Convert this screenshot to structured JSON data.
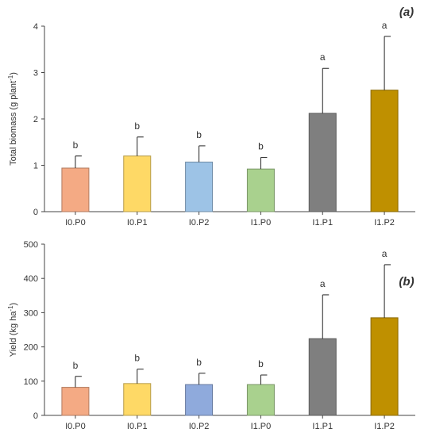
{
  "chart_data": [
    {
      "type": "bar",
      "panel_label": "(a)",
      "ylabel": "Total biomass (g plant",
      "ylabel_sup": "-1",
      "ylabel_end": ")",
      "categories": [
        "I0.P0",
        "I0.P1",
        "I0.P2",
        "I1.P0",
        "I1.P1",
        "I1.P2"
      ],
      "values": [
        0.94,
        1.2,
        1.07,
        0.92,
        2.12,
        2.62
      ],
      "errors": [
        0.26,
        0.41,
        0.35,
        0.25,
        0.97,
        1.16
      ],
      "letters": [
        "b",
        "b",
        "b",
        "b",
        "a",
        "a"
      ],
      "colors": [
        "#F4AA84",
        "#FED966",
        "#9DC3E6",
        "#A9D18E",
        "#7F7F7F",
        "#BF9000"
      ],
      "ylim": [
        0,
        4
      ],
      "yticks": [
        0,
        1,
        2,
        3,
        4
      ],
      "grid": false
    },
    {
      "type": "bar",
      "panel_label": "(b)",
      "ylabel": "Yield (kg ha",
      "ylabel_sup": "-1",
      "ylabel_end": ")",
      "categories": [
        "I0.P0",
        "I0.P1",
        "I0.P2",
        "I1.P0",
        "I1.P1",
        "I1.P2"
      ],
      "values": [
        82,
        93,
        90,
        90,
        224,
        285
      ],
      "errors": [
        32,
        42,
        33,
        28,
        128,
        155
      ],
      "letters": [
        "b",
        "b",
        "b",
        "b",
        "a",
        "a"
      ],
      "colors": [
        "#F4AA84",
        "#FED966",
        "#8FAADC",
        "#A9D18E",
        "#7F7F7F",
        "#BF9000"
      ],
      "ylim": [
        0,
        500
      ],
      "yticks": [
        0,
        100,
        200,
        300,
        400,
        500
      ],
      "grid": false
    }
  ]
}
